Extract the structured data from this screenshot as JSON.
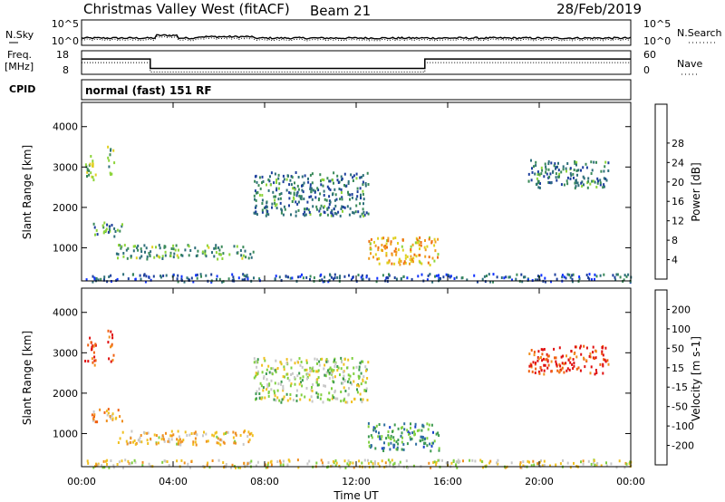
{
  "header": {
    "station": "Christmas Valley West (fitACF)",
    "beam": "Beam 21",
    "date": "28/Feb/2019"
  },
  "noise_panel": {
    "left_label": "N.Sky",
    "right_label": "N.Search",
    "left_ticks": [
      "10^5",
      "10^0"
    ],
    "right_ticks": [
      "10^5",
      "10^0"
    ]
  },
  "freq_panel": {
    "left_label_top": "Freq.",
    "left_label_unit": "[MHz]",
    "right_label": "Nave",
    "left_ticks": [
      "18",
      "8"
    ],
    "right_ticks": [
      "60",
      "0"
    ],
    "freq_steps": [
      {
        "start_h": 0,
        "end_h": 3.0,
        "mhz": 14.5
      },
      {
        "start_h": 3.0,
        "end_h": 15.0,
        "mhz": 10.5
      },
      {
        "start_h": 15.0,
        "end_h": 24.0,
        "mhz": 14.5
      }
    ]
  },
  "cpid": {
    "label": "CPID",
    "mode": "normal (fast) 151 RF"
  },
  "x_axis": {
    "label": "Time UT",
    "ticks": [
      "00:00",
      "04:00",
      "08:00",
      "12:00",
      "16:00",
      "20:00",
      "00:00"
    ],
    "range_hours": [
      0,
      24
    ]
  },
  "chart_data": [
    {
      "type": "heatmap",
      "title": "",
      "ylabel": "Slant Range [km]",
      "ylim": [
        180,
        4600
      ],
      "yticks": [
        "1000",
        "2000",
        "3000",
        "4000"
      ],
      "ytick_values": [
        1000,
        2000,
        3000,
        4000
      ],
      "colorbar": {
        "label": "Power [dB]",
        "ticks": [
          "4",
          "8",
          "12",
          "16",
          "20",
          "24",
          "28"
        ],
        "colors": [
          "#1133ff",
          "#1d3f9c",
          "#2e6f7a",
          "#3a8a5a",
          "#8dd43a",
          "#e0d020",
          "#f0a020",
          "#f07010",
          "#e02010"
        ]
      },
      "regions": [
        {
          "t0": 0.05,
          "t1": 0.6,
          "r0": 2700,
          "r1": 3400,
          "level": 0.5
        },
        {
          "t0": 1.1,
          "t1": 1.4,
          "r0": 2800,
          "r1": 3600,
          "level": 0.45
        },
        {
          "t0": 0.4,
          "t1": 1.8,
          "r0": 1300,
          "r1": 1650,
          "level": 0.35
        },
        {
          "t0": 1.5,
          "t1": 7.5,
          "r0": 750,
          "r1": 1100,
          "level": 0.4
        },
        {
          "t0": 12.5,
          "t1": 15.6,
          "r0": 600,
          "r1": 1300,
          "level": 0.7
        },
        {
          "t0": 7.5,
          "t1": 12.5,
          "r0": 1800,
          "r1": 2900,
          "level": 0.3
        },
        {
          "t0": 19.5,
          "t1": 23.0,
          "r0": 2500,
          "r1": 3200,
          "level": 0.3
        },
        {
          "t0": 0.0,
          "t1": 24.0,
          "r0": 180,
          "r1": 380,
          "level": 0.2
        }
      ]
    },
    {
      "type": "heatmap",
      "title": "",
      "ylabel": "Slant Range [km]",
      "ylim": [
        180,
        4600
      ],
      "yticks": [
        "1000",
        "2000",
        "3000",
        "4000"
      ],
      "ytick_values": [
        1000,
        2000,
        3000,
        4000
      ],
      "colorbar": {
        "label": "Velocity [m s-1]",
        "ticks": [
          "200",
          "100",
          "50",
          "15",
          "-15",
          "-50",
          "-100",
          "-200"
        ],
        "colors": [
          "#1840c8",
          "#2f6fa0",
          "#3d9a50",
          "#80d040",
          "#c8c8c8",
          "#f0c020",
          "#f09020",
          "#f06010",
          "#e01010"
        ]
      },
      "regions": [
        {
          "t0": 0.05,
          "t1": 0.6,
          "r0": 2700,
          "r1": 3400,
          "level": 0.9
        },
        {
          "t0": 1.1,
          "t1": 1.4,
          "r0": 2800,
          "r1": 3600,
          "level": 0.85
        },
        {
          "t0": 0.4,
          "t1": 1.8,
          "r0": 1300,
          "r1": 1650,
          "level": 0.7
        },
        {
          "t0": 1.5,
          "t1": 7.5,
          "r0": 750,
          "r1": 1100,
          "level": 0.6
        },
        {
          "t0": 12.5,
          "t1": 15.6,
          "r0": 600,
          "r1": 1300,
          "level": 0.25
        },
        {
          "t0": 7.5,
          "t1": 12.5,
          "r0": 1800,
          "r1": 2900,
          "level": 0.45
        },
        {
          "t0": 19.5,
          "t1": 23.0,
          "r0": 2500,
          "r1": 3200,
          "level": 0.9
        },
        {
          "t0": 0.0,
          "t1": 24.0,
          "r0": 180,
          "r1": 380,
          "level": 0.55
        }
      ]
    }
  ]
}
